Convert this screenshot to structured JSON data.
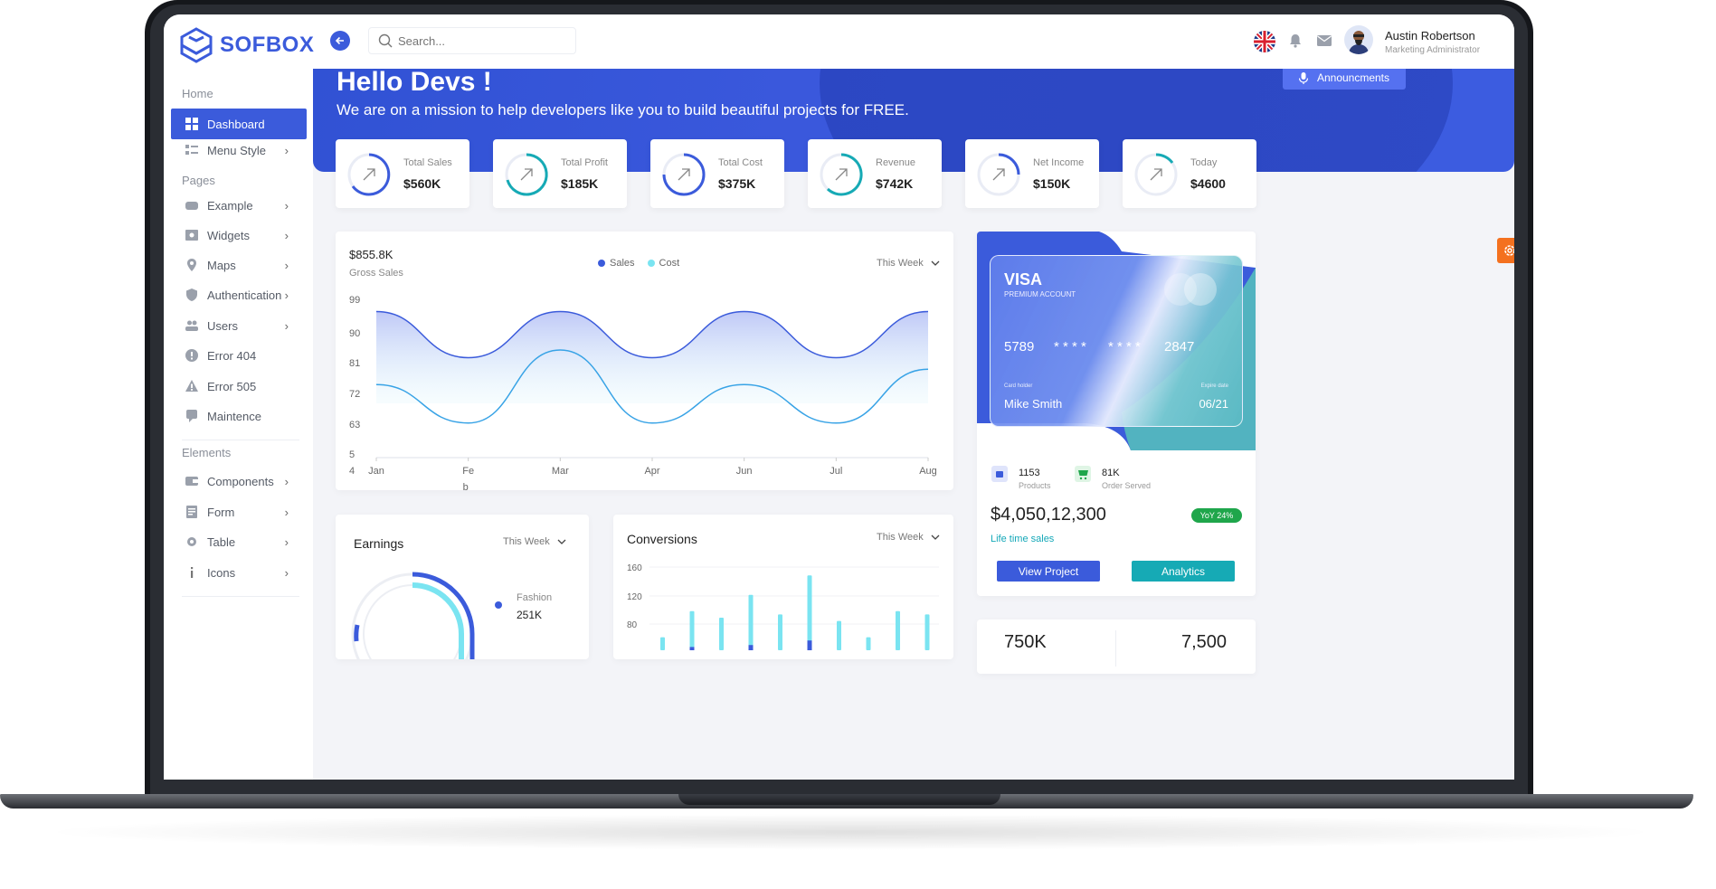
{
  "app": {
    "brand": "SOFBOX"
  },
  "topbar": {
    "search_placeholder": "Search...",
    "user_name": "Austin Robertson",
    "user_role": "Marketing Administrator"
  },
  "sidebar": {
    "sections": {
      "home": "Home",
      "pages": "Pages",
      "elements": "Elements"
    },
    "items": [
      {
        "label": "Dashboard"
      },
      {
        "label": "Menu Style"
      },
      {
        "label": "Example"
      },
      {
        "label": "Widgets"
      },
      {
        "label": "Maps"
      },
      {
        "label": "Authentication"
      },
      {
        "label": "Users"
      },
      {
        "label": "Error 404"
      },
      {
        "label": "Error 505"
      },
      {
        "label": "Maintence"
      },
      {
        "label": "Components"
      },
      {
        "label": "Form"
      },
      {
        "label": "Table"
      },
      {
        "label": "Icons"
      }
    ]
  },
  "hero": {
    "title": "Hello Devs !",
    "subtitle": "We are on a mission to help developers like you to build beautiful projects for FREE.",
    "announce_label": "Announcments"
  },
  "stats": [
    {
      "label": "Total Sales",
      "value": "$560K",
      "color": "#3b5bdb"
    },
    {
      "label": "Total Profit",
      "value": "$185K",
      "color": "#16aab5"
    },
    {
      "label": "Total Cost",
      "value": "$375K",
      "color": "#3b5bdb"
    },
    {
      "label": "Revenue",
      "value": "$742K",
      "color": "#16aab5"
    },
    {
      "label": "Net Income",
      "value": "$150K",
      "color": "#3b5bdb"
    },
    {
      "label": "Today",
      "value": "$4600",
      "color": "#16aab5"
    }
  ],
  "gross_sales": {
    "value": "$855.8K",
    "label": "Gross Sales",
    "period": "This Week"
  },
  "chart_data": [
    {
      "type": "line",
      "x": [
        "Jan",
        "Feb",
        "Mar",
        "Apr",
        "Jun",
        "Jul",
        "Aug"
      ],
      "x_tick_labels": [
        "Jan",
        "Fe",
        "Mar",
        "Apr",
        "Jun",
        "Jul",
        "Aug"
      ],
      "x_tick_wrap": "b",
      "y_ticks": [
        "99",
        "90",
        "81",
        "72",
        "63",
        "5",
        "4"
      ],
      "series": [
        {
          "name": "Sales",
          "color": "#3b5bdb",
          "values": [
            98,
            86,
            98,
            86,
            98,
            86,
            98
          ]
        },
        {
          "name": "Cost",
          "color": "#38a3e6",
          "values": [
            79,
            69,
            88,
            69,
            79,
            69,
            83
          ]
        }
      ],
      "grid": false
    },
    {
      "type": "bar",
      "title": "Conversions",
      "y_ticks": [
        "160",
        "120",
        "80"
      ],
      "series": [
        {
          "name": "",
          "color": "#7ae4f1",
          "values": [
            20,
            60,
            50,
            85,
            55,
            115,
            45,
            20,
            60,
            55
          ]
        },
        {
          "name": "",
          "color": "#3b5bdb",
          "values": [
            0,
            5,
            0,
            8,
            0,
            15,
            0,
            0,
            0,
            0
          ]
        }
      ]
    }
  ],
  "card": {
    "brand": "VISA",
    "account": "PREMIUM ACCOUNT",
    "num_1": "5789",
    "num_2": "* * * *",
    "num_3": "* * * *",
    "num_4": "2847",
    "holder_label": "Card holder",
    "holder": "Mike Smith",
    "expire_label": "Expire date",
    "expire": "06/21"
  },
  "summary": {
    "products_value": "1153",
    "products_label": "Products",
    "orders_value": "81K",
    "orders_label": "Order Served",
    "amount": "$4,050,12,300",
    "lifetime": "Life time sales",
    "yoy": "YoY 24%",
    "view_button": "View Project",
    "analytics_button": "Analytics"
  },
  "earnings": {
    "title": "Earnings",
    "period": "This Week",
    "legend_label": "Fashion",
    "legend_value": "251K"
  },
  "conversions": {
    "title": "Conversions",
    "period": "This Week"
  },
  "bottom": {
    "left_value": "750K",
    "right_value": "7,500"
  }
}
